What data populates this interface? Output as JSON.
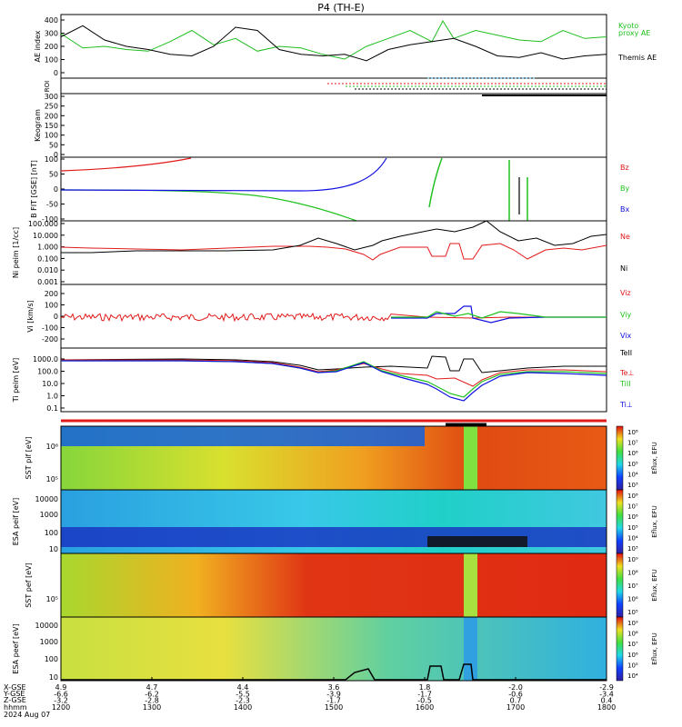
{
  "title": "P4 (TH-E)",
  "date_label": "2024 Aug 07",
  "colors": {
    "kyoto": "#1fbf1f",
    "themis": "#000000",
    "red": "#e11a1a",
    "green": "#1fc21f",
    "blue": "#1010e0"
  },
  "chart_data": [
    {
      "type": "line",
      "panel": "ae",
      "ylabel": "AE index",
      "yticks": [
        "400",
        "300",
        "200",
        "100",
        "0"
      ],
      "ylim": [
        0,
        400
      ],
      "series": [
        {
          "name": "Kyoto proxy AE",
          "color": "#1fbf1f",
          "x": [
            0,
            0.04,
            0.08,
            0.12,
            0.16,
            0.2,
            0.24,
            0.28,
            0.32,
            0.36,
            0.4,
            0.44,
            0.48,
            0.52,
            0.56,
            0.6,
            0.64,
            0.68,
            0.7,
            0.72,
            0.76,
            0.8,
            0.84,
            0.88,
            0.92,
            0.96,
            1.0
          ],
          "values": [
            280,
            190,
            200,
            180,
            170,
            230,
            300,
            210,
            250,
            170,
            200,
            190,
            150,
            120,
            200,
            250,
            300,
            230,
            360,
            250,
            300,
            270,
            240,
            230,
            300,
            250,
            260
          ]
        },
        {
          "name": "Themis AE",
          "color": "#000000",
          "x": [
            0,
            0.04,
            0.08,
            0.12,
            0.16,
            0.2,
            0.24,
            0.28,
            0.32,
            0.36,
            0.4,
            0.44,
            0.48,
            0.52,
            0.56,
            0.6,
            0.64,
            0.68,
            0.72,
            0.76,
            0.8,
            0.84,
            0.88,
            0.92,
            0.96,
            1.0
          ],
          "values": [
            260,
            330,
            240,
            200,
            180,
            150,
            140,
            200,
            320,
            300,
            180,
            150,
            140,
            150,
            110,
            180,
            210,
            230,
            250,
            200,
            140,
            130,
            160,
            120,
            140,
            150
          ]
        }
      ],
      "legend": [
        "Kyoto",
        "proxy AE",
        "Themis AE"
      ]
    },
    {
      "type": "line",
      "panel": "roi",
      "ylabel": "ROI",
      "yticks": []
    },
    {
      "type": "line",
      "panel": "keogram",
      "ylabel": "Keogram",
      "yticks": [
        "300",
        "250",
        "200",
        "150",
        "100",
        "50",
        "0"
      ],
      "ylim": [
        0,
        300
      ]
    },
    {
      "type": "line",
      "panel": "bfgm",
      "ylabel": "B FIT [GSE] [nT]",
      "yticks": [
        "100",
        "50",
        "0",
        "-50",
        "-100"
      ],
      "ylim": [
        -100,
        100
      ],
      "legend": [
        "Bz",
        "By",
        "Bx"
      ]
    },
    {
      "type": "line",
      "panel": "ni",
      "ylabel": "Ni peim [1/cc]",
      "yticks": [
        "100.000",
        "10.000",
        "1.000",
        "0.100",
        "0.010",
        "0.001"
      ],
      "yscale": "log",
      "legend": [
        "Ne",
        "Ni"
      ]
    },
    {
      "type": "line",
      "panel": "vi",
      "ylabel": "Vi [km/s]",
      "yticks": [
        "200",
        "100",
        "0",
        "-100",
        "-200"
      ],
      "ylim": [
        -300,
        300
      ],
      "legend": [
        "Viz",
        "Viy",
        "Vix"
      ]
    },
    {
      "type": "line",
      "panel": "ti",
      "ylabel": "Ti peim [eV]",
      "yticks": [
        "1000.0",
        "100.0",
        "10.0",
        "1.0",
        "0.1"
      ],
      "yscale": "log",
      "legend": [
        "TeII",
        "Te⊥",
        "TiII",
        "Ti⊥"
      ]
    },
    {
      "type": "heatmap",
      "panel": "sst_i",
      "ylabel": "SST pif [eV]",
      "yticks": [
        "10⁶",
        "10⁵"
      ],
      "cbar": [
        "10⁸",
        "10⁷",
        "10⁶",
        "10⁵",
        "10⁴",
        "10³"
      ],
      "cbar_label": "Eflux, EFU"
    },
    {
      "type": "heatmap",
      "panel": "esa_i",
      "ylabel": "ESA peif [eV]",
      "yticks": [
        "10000",
        "1000",
        "100",
        "10"
      ],
      "cbar": [
        "10⁸",
        "10⁷",
        "10⁶",
        "10⁵",
        "10⁴",
        "10³"
      ],
      "cbar_label": "Eflux, EFU"
    },
    {
      "type": "heatmap",
      "panel": "sst_e",
      "ylabel": "SST pef [eV]",
      "yticks": [
        "10⁵"
      ],
      "cbar": [
        "10⁹",
        "10⁸",
        "10⁷",
        "10⁶",
        "10⁵"
      ],
      "cbar_label": "Eflux, EFU"
    },
    {
      "type": "heatmap",
      "panel": "esa_e",
      "ylabel": "ESA peef [eV]",
      "yticks": [
        "10000",
        "1000",
        "100",
        "10"
      ],
      "cbar": [
        "10⁹",
        "10⁸",
        "10⁷",
        "10⁶",
        "10⁵",
        "10⁴"
      ],
      "cbar_label": "Eflux, EFU"
    }
  ],
  "xaxis": {
    "labels": [
      "X-GSE",
      "Y-GSE",
      "Z-GSE",
      "hhmm"
    ],
    "columns": [
      [
        "4.9",
        "-6.6",
        "-3.2",
        "1200"
      ],
      [
        "4.7",
        "-6.2",
        "-2.8",
        "1300"
      ],
      [
        "4.4",
        "-5.5",
        "-2.3",
        "1400"
      ],
      [
        "3.6",
        "-3.9",
        "-1.7",
        "1500"
      ],
      [
        "1.8",
        "-1.7",
        "-0.5",
        "1600"
      ],
      [
        "-2.0",
        "-0.6",
        "0.7",
        "1700"
      ],
      [
        "-2.9",
        "-3.4",
        "0.4",
        "1800"
      ]
    ]
  }
}
